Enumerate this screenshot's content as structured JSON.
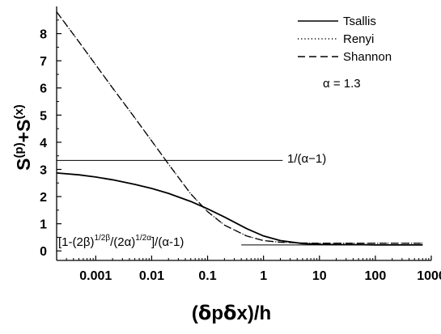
{
  "chart_data": {
    "type": "line",
    "xscale": "log",
    "xlim": [
      0.0002,
      1000
    ],
    "ylim": [
      -0.35,
      9.0
    ],
    "x_ticks": [
      {
        "value": 0.001,
        "label": "0.001"
      },
      {
        "value": 0.01,
        "label": "0.01"
      },
      {
        "value": 0.1,
        "label": "0.1"
      },
      {
        "value": 1,
        "label": "1"
      },
      {
        "value": 10,
        "label": "10"
      },
      {
        "value": 100,
        "label": "100"
      },
      {
        "value": 1000,
        "label": "1000"
      }
    ],
    "y_ticks": [
      {
        "value": 0,
        "label": "0"
      },
      {
        "value": 1,
        "label": "1"
      },
      {
        "value": 2,
        "label": "2"
      },
      {
        "value": 3,
        "label": "3"
      },
      {
        "value": 4,
        "label": "4"
      },
      {
        "value": 5,
        "label": "5"
      },
      {
        "value": 6,
        "label": "6"
      },
      {
        "value": 7,
        "label": "7"
      },
      {
        "value": 8,
        "label": "8"
      }
    ],
    "xlabel": {
      "pre": "(",
      "delta1": "δ",
      "p": "p",
      "delta2": "δ",
      "post": "x)/h"
    },
    "ylabel": {
      "s1": "S",
      "sup1": "(p)",
      "plus": "+S",
      "sup2": "(x)"
    },
    "legend": [
      {
        "label": "Tsallis",
        "dash": "solid"
      },
      {
        "label": "Renyi",
        "dash": "dotted"
      },
      {
        "label": "Shannon",
        "dash": "dashed"
      }
    ],
    "parameter_label": "α = 1.3",
    "series": [
      {
        "name": "Tsallis",
        "dash": "solid",
        "x": [
          0.0002,
          0.0005,
          0.001,
          0.002,
          0.005,
          0.01,
          0.02,
          0.05,
          0.1,
          0.2,
          0.5,
          1,
          2,
          5,
          10,
          20,
          50,
          100,
          200,
          700
        ],
        "y": [
          2.87,
          2.8,
          2.72,
          2.62,
          2.45,
          2.3,
          2.12,
          1.82,
          1.55,
          1.25,
          0.82,
          0.55,
          0.38,
          0.27,
          0.24,
          0.23,
          0.23,
          0.22,
          0.22,
          0.22
        ]
      },
      {
        "name": "Renyi",
        "dash": "dotted",
        "x": [
          0.0002,
          0.0005,
          0.001,
          0.002,
          0.005,
          0.01,
          0.02,
          0.05,
          0.1,
          0.2,
          0.5,
          1,
          2,
          5,
          10,
          20,
          50,
          100,
          200,
          700
        ],
        "y": [
          8.8,
          7.7,
          6.85,
          6.0,
          4.9,
          4.05,
          3.2,
          2.1,
          1.45,
          0.95,
          0.55,
          0.38,
          0.32,
          0.29,
          0.28,
          0.28,
          0.28,
          0.28,
          0.28,
          0.28
        ]
      },
      {
        "name": "Shannon",
        "dash": "dashed",
        "x": [
          0.0002,
          0.0005,
          0.001,
          0.002,
          0.005,
          0.01,
          0.02,
          0.05,
          0.1,
          0.2,
          0.5,
          1,
          2,
          5,
          10,
          20,
          50,
          100,
          200,
          700
        ],
        "y": [
          8.8,
          7.7,
          6.85,
          6.0,
          4.9,
          4.05,
          3.2,
          2.1,
          1.45,
          0.95,
          0.55,
          0.38,
          0.32,
          0.29,
          0.28,
          0.28,
          0.28,
          0.28,
          0.28,
          0.28
        ]
      }
    ],
    "reference_lines": [
      {
        "label": "1/(α−1)",
        "y": 3.33,
        "x_start": 0.0002,
        "x_end": 2.2
      },
      {
        "label_parts": {
          "a": "[1-(2β)",
          "a_sup": "1/2β",
          "b": "/(2α)",
          "b_sup": "1/2α",
          "c": "]/(α-1)"
        },
        "y": 0.22,
        "x_start": 0.4,
        "x_end": 700
      }
    ]
  }
}
